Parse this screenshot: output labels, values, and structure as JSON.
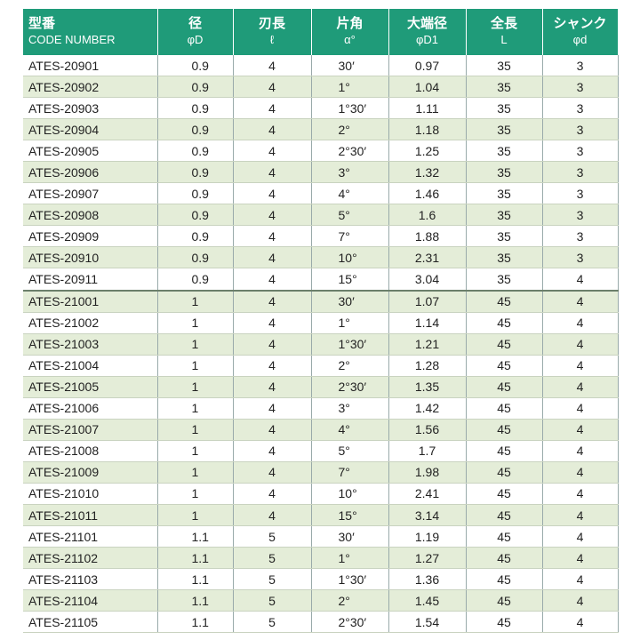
{
  "table": {
    "header": [
      [
        "型番",
        "CODE NUMBER"
      ],
      [
        "径",
        "φD"
      ],
      [
        "刃長",
        "ℓ"
      ],
      [
        "片角",
        "α°"
      ],
      [
        "大端径",
        "φD1"
      ],
      [
        "全長",
        "L"
      ],
      [
        "シャンク",
        "φd"
      ]
    ],
    "rows": [
      [
        "ATES-20901",
        "0.9",
        "4",
        "30′",
        "0.97",
        "35",
        "3"
      ],
      [
        "ATES-20902",
        "0.9",
        "4",
        "1°",
        "1.04",
        "35",
        "3"
      ],
      [
        "ATES-20903",
        "0.9",
        "4",
        "1°30′",
        "1.11",
        "35",
        "3"
      ],
      [
        "ATES-20904",
        "0.9",
        "4",
        "2°",
        "1.18",
        "35",
        "3"
      ],
      [
        "ATES-20905",
        "0.9",
        "4",
        "2°30′",
        "1.25",
        "35",
        "3"
      ],
      [
        "ATES-20906",
        "0.9",
        "4",
        "3°",
        "1.32",
        "35",
        "3"
      ],
      [
        "ATES-20907",
        "0.9",
        "4",
        "4°",
        "1.46",
        "35",
        "3"
      ],
      [
        "ATES-20908",
        "0.9",
        "4",
        "5°",
        "1.6",
        "35",
        "3"
      ],
      [
        "ATES-20909",
        "0.9",
        "4",
        "7°",
        "1.88",
        "35",
        "3"
      ],
      [
        "ATES-20910",
        "0.9",
        "4",
        "10°",
        "2.31",
        "35",
        "3"
      ],
      [
        "ATES-20911",
        "0.9",
        "4",
        "15°",
        "3.04",
        "35",
        "4"
      ],
      [
        "ATES-21001",
        "1",
        "4",
        "30′",
        "1.07",
        "45",
        "4"
      ],
      [
        "ATES-21002",
        "1",
        "4",
        "1°",
        "1.14",
        "45",
        "4"
      ],
      [
        "ATES-21003",
        "1",
        "4",
        "1°30′",
        "1.21",
        "45",
        "4"
      ],
      [
        "ATES-21004",
        "1",
        "4",
        "2°",
        "1.28",
        "45",
        "4"
      ],
      [
        "ATES-21005",
        "1",
        "4",
        "2°30′",
        "1.35",
        "45",
        "4"
      ],
      [
        "ATES-21006",
        "1",
        "4",
        "3°",
        "1.42",
        "45",
        "4"
      ],
      [
        "ATES-21007",
        "1",
        "4",
        "4°",
        "1.56",
        "45",
        "4"
      ],
      [
        "ATES-21008",
        "1",
        "4",
        "5°",
        "1.7",
        "45",
        "4"
      ],
      [
        "ATES-21009",
        "1",
        "4",
        "7°",
        "1.98",
        "45",
        "4"
      ],
      [
        "ATES-21010",
        "1",
        "4",
        "10°",
        "2.41",
        "45",
        "4"
      ],
      [
        "ATES-21011",
        "1",
        "4",
        "15°",
        "3.14",
        "45",
        "4"
      ],
      [
        "ATES-21101",
        "1.1",
        "5",
        "30′",
        "1.19",
        "45",
        "4"
      ],
      [
        "ATES-21102",
        "1.1",
        "5",
        "1°",
        "1.27",
        "45",
        "4"
      ],
      [
        "ATES-21103",
        "1.1",
        "5",
        "1°30′",
        "1.36",
        "45",
        "4"
      ],
      [
        "ATES-21104",
        "1.1",
        "5",
        "2°",
        "1.45",
        "45",
        "4"
      ],
      [
        "ATES-21105",
        "1.1",
        "5",
        "2°30′",
        "1.54",
        "45",
        "4"
      ]
    ]
  }
}
